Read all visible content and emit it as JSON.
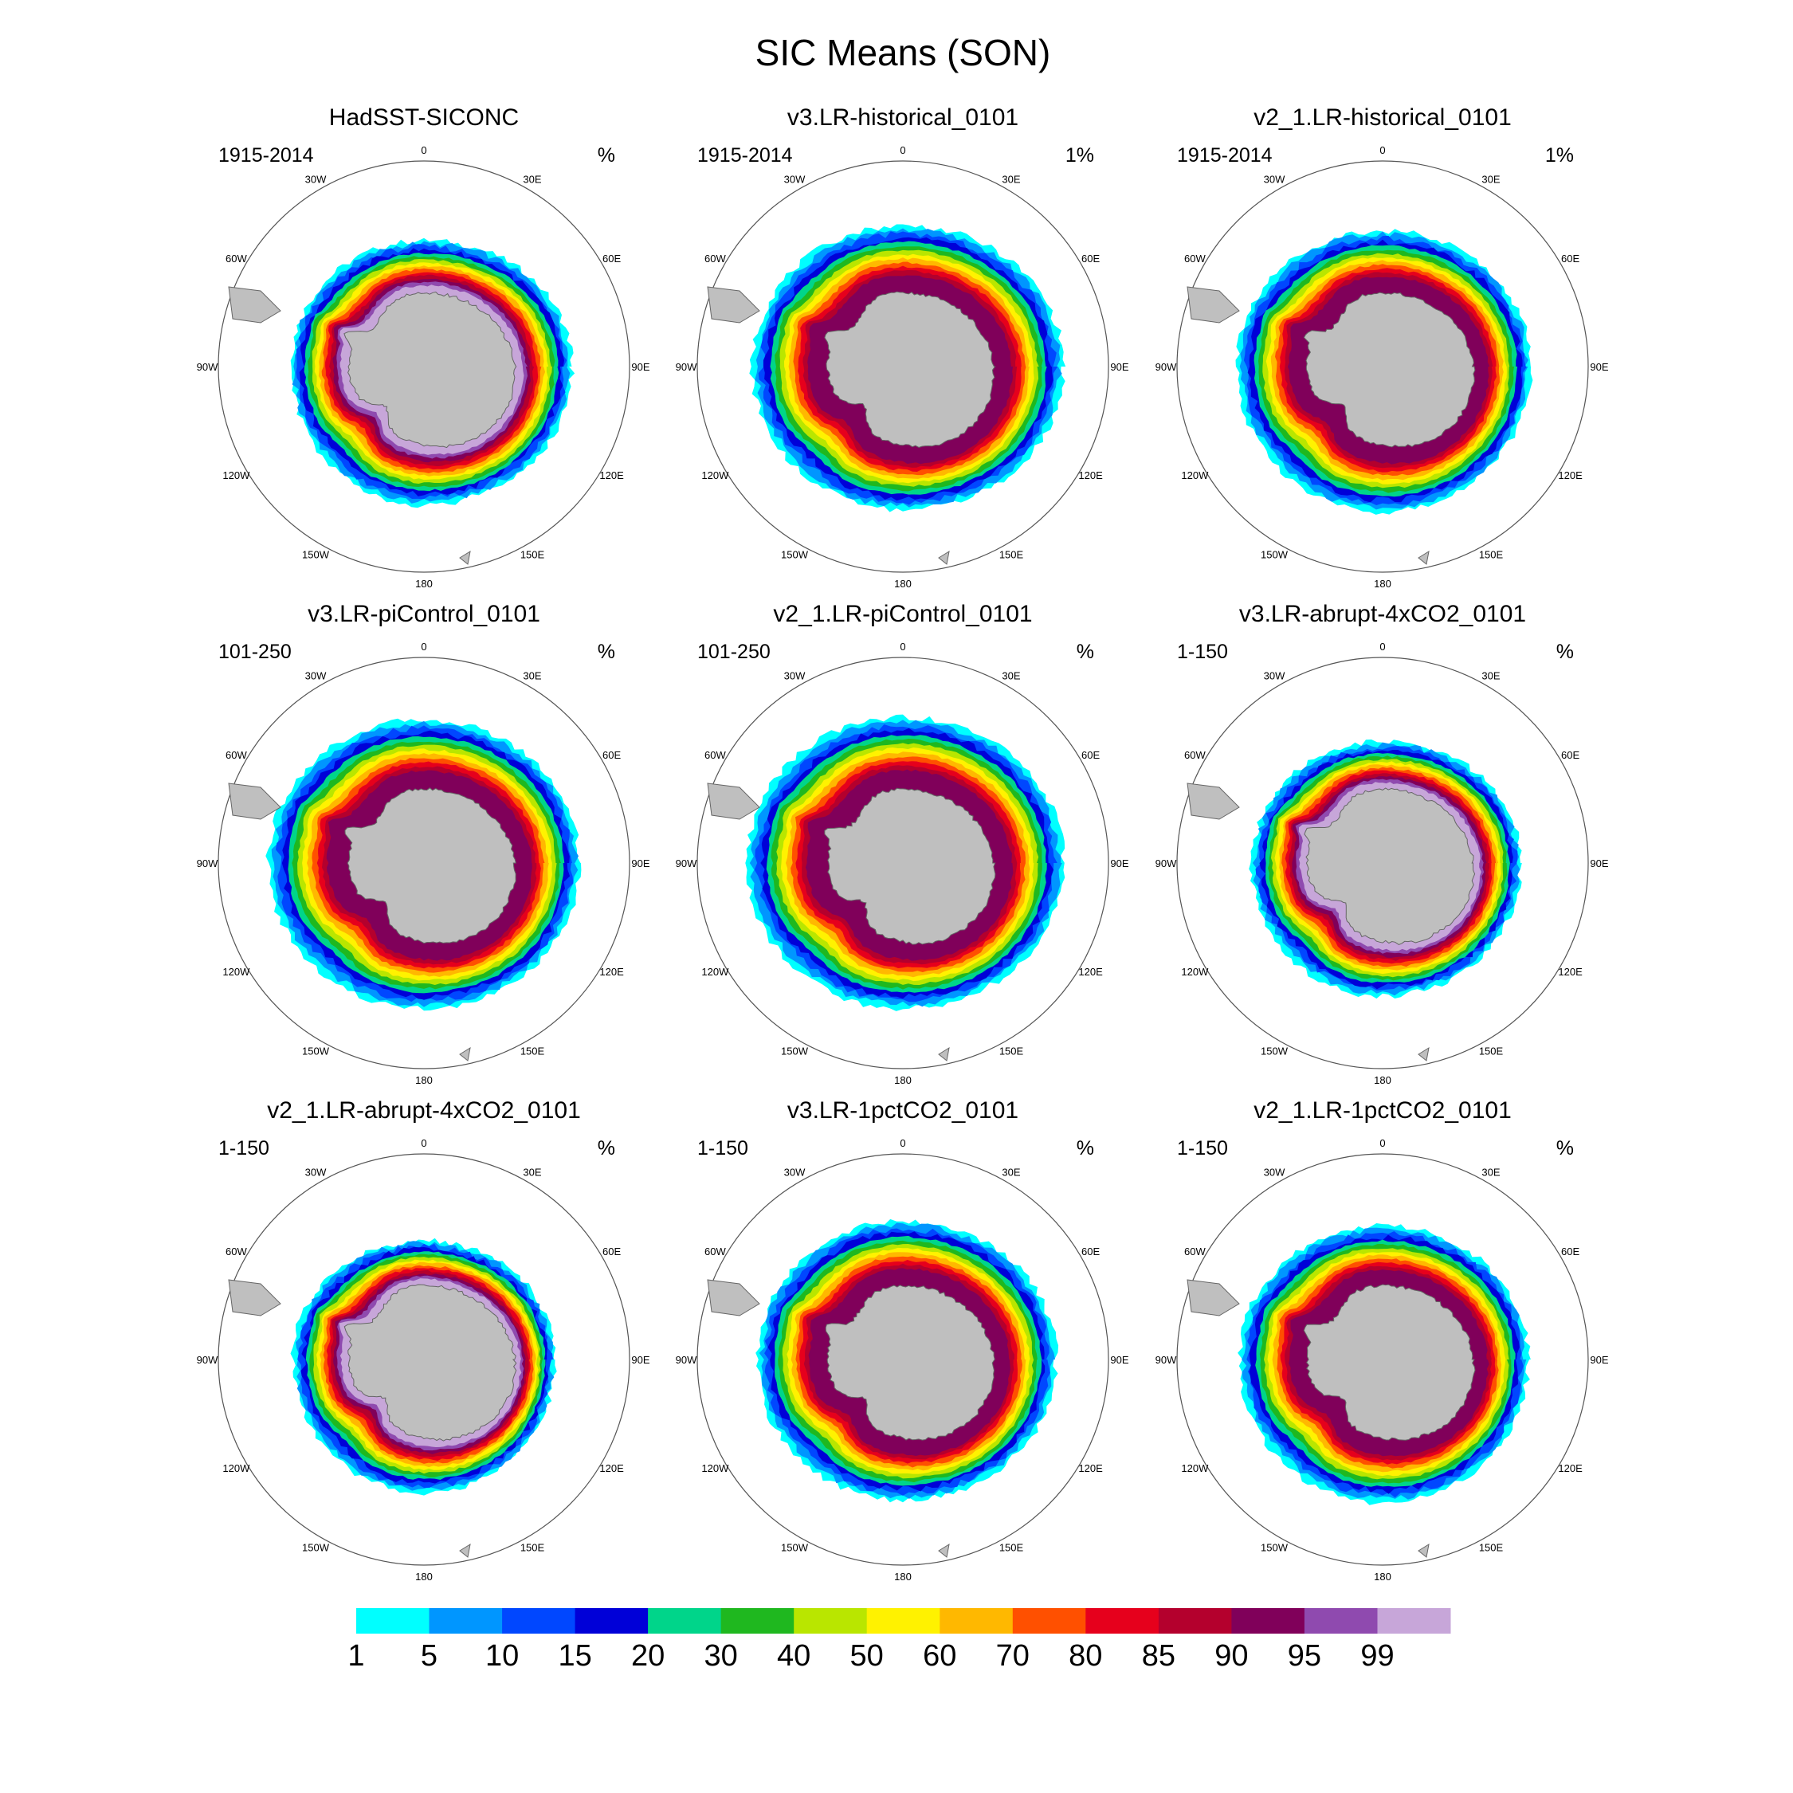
{
  "figure": {
    "title": "SIC Means (SON)"
  },
  "chart_data": {
    "type": "contour-map",
    "projection": "south-polar-stereographic",
    "variable": "Sea ice concentration",
    "units": "%",
    "season": "SON",
    "longitude_labels": [
      "0",
      "30E",
      "60E",
      "90E",
      "120E",
      "150E",
      "180",
      "150W",
      "120W",
      "90W",
      "60W",
      "30W"
    ],
    "legend": {
      "levels": [
        "1",
        "5",
        "10",
        "15",
        "20",
        "30",
        "40",
        "50",
        "60",
        "70",
        "80",
        "85",
        "90",
        "95",
        "99"
      ],
      "colors": [
        "#00ffff",
        "#0096ff",
        "#0047ff",
        "#0000d8",
        "#00d58a",
        "#1fb81f",
        "#b9e600",
        "#fff200",
        "#ffb800",
        "#ff5000",
        "#e6001c",
        "#b4002d",
        "#80005a",
        "#8f4aaf",
        "#c7a6d9"
      ]
    },
    "panels": [
      {
        "title": "HadSST-SICONC",
        "period": "1915-2014",
        "units": "%",
        "extent": {
          "n": 1.02,
          "e": 1.2,
          "s": 1.12,
          "w": 1.08
        },
        "inner": "purple"
      },
      {
        "title": "v3.LR-historical_0101",
        "period": "1915-2014",
        "units": "1%",
        "extent": {
          "n": 1.14,
          "e": 1.3,
          "s": 1.16,
          "w": 1.22
        },
        "inner": "red"
      },
      {
        "title": "v2_1.LR-historical_0101",
        "period": "1915-2014",
        "units": "1%",
        "extent": {
          "n": 1.1,
          "e": 1.2,
          "s": 1.18,
          "w": 1.18
        },
        "inner": "red"
      },
      {
        "title": "v3.LR-piControl_0101",
        "period": "101-250",
        "units": "%",
        "extent": {
          "n": 1.16,
          "e": 1.26,
          "s": 1.18,
          "w": 1.26
        },
        "inner": "red"
      },
      {
        "title": "v2_1.LR-piControl_0101",
        "period": "101-250",
        "units": "%",
        "extent": {
          "n": 1.18,
          "e": 1.3,
          "s": 1.18,
          "w": 1.26
        },
        "inner": "red"
      },
      {
        "title": "v3.LR-abrupt-4xCO2_0101",
        "period": "1-150",
        "units": "%",
        "extent": {
          "n": 0.98,
          "e": 1.12,
          "s": 1.08,
          "w": 1.06
        },
        "inner": "purple"
      },
      {
        "title": "v2_1.LR-abrupt-4xCO2_0101",
        "period": "1-150",
        "units": "%",
        "extent": {
          "n": 0.96,
          "e": 1.06,
          "s": 1.08,
          "w": 1.06
        },
        "inner": "purple"
      },
      {
        "title": "v3.LR-1pctCO2_0101",
        "period": "1-150",
        "units": "%",
        "extent": {
          "n": 1.12,
          "e": 1.24,
          "s": 1.14,
          "w": 1.18
        },
        "inner": "red"
      },
      {
        "title": "v2_1.LR-1pctCO2_0101",
        "period": "1-150",
        "units": "%",
        "extent": {
          "n": 1.08,
          "e": 1.18,
          "s": 1.16,
          "w": 1.16
        },
        "inner": "red"
      }
    ]
  }
}
